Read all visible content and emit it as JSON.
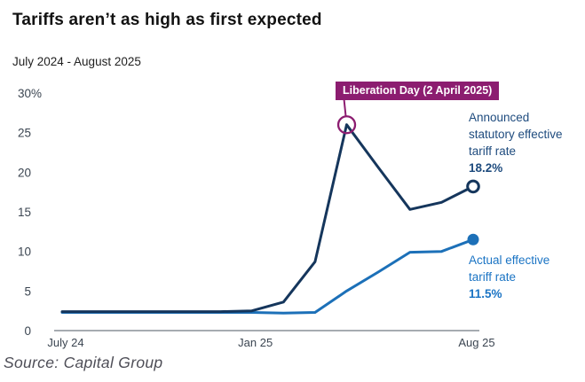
{
  "header": {
    "title": "Tariffs aren’t as high as first expected",
    "subtitle": "July 2024 - August 2025"
  },
  "annotations": {
    "liberation_day": {
      "label": "Liberation Day (2 April 2025)",
      "month": "Apr 25",
      "value": 26.0
    },
    "announced": {
      "line1": "Announced",
      "line2": "statutory effective",
      "line3": "tariff rate",
      "value": "18.2%"
    },
    "actual": {
      "line1": "Actual effective",
      "line2": "tariff rate",
      "value": "11.5%"
    }
  },
  "footer": {
    "source": "Source: Capital Group"
  },
  "colors": {
    "announced_line": "#15365C",
    "actual_line": "#1C70B8",
    "badge_bg": "#8C1D70",
    "badge_text": "#FFFFFF",
    "axis_line": "#A6ABB1",
    "tick_label": "#3B4551",
    "announced_text": "#1E4B7E",
    "actual_text": "#1B74C4"
  },
  "chart_data": {
    "type": "line",
    "x": [
      "Jul 24",
      "Aug 24",
      "Sep 24",
      "Oct 24",
      "Nov 24",
      "Dec 24",
      "Jan 25",
      "Feb 25",
      "Mar 25",
      "Apr 25",
      "May 25",
      "Jun 25",
      "Jul 25",
      "Aug 25"
    ],
    "series": [
      {
        "name": "Announced statutory effective tariff rate",
        "values": [
          2.4,
          2.4,
          2.4,
          2.4,
          2.4,
          2.4,
          2.5,
          3.6,
          8.7,
          26.0,
          20.6,
          15.3,
          16.2,
          18.2
        ],
        "end_value": 18.2,
        "end_label": "18.2%",
        "marker": "open-circle"
      },
      {
        "name": "Actual effective tariff rate",
        "values": [
          2.3,
          2.3,
          2.3,
          2.3,
          2.3,
          2.3,
          2.3,
          2.2,
          2.3,
          5.0,
          7.4,
          9.9,
          10.0,
          11.5
        ],
        "end_value": 11.5,
        "end_label": "11.5%",
        "marker": "filled-circle"
      }
    ],
    "ylim": [
      0,
      30
    ],
    "yticks": [
      {
        "value": 30,
        "label": "30%"
      },
      {
        "value": 25,
        "label": "25"
      },
      {
        "value": 20,
        "label": "20"
      },
      {
        "value": 15,
        "label": "15"
      },
      {
        "value": 10,
        "label": "10"
      },
      {
        "value": 5,
        "label": "5"
      },
      {
        "value": 0,
        "label": "0"
      }
    ],
    "xticks": [
      {
        "month": "Jul 24",
        "label": "July 24"
      },
      {
        "month": "Jan 25",
        "label": "Jan 25"
      },
      {
        "month": "Aug 25",
        "label": "Aug 25"
      }
    ],
    "grid": false,
    "legend_position": "inline-right",
    "annotation": {
      "label": "Liberation Day (2 April 2025)",
      "x": "Apr 25",
      "y": 26.0
    }
  }
}
